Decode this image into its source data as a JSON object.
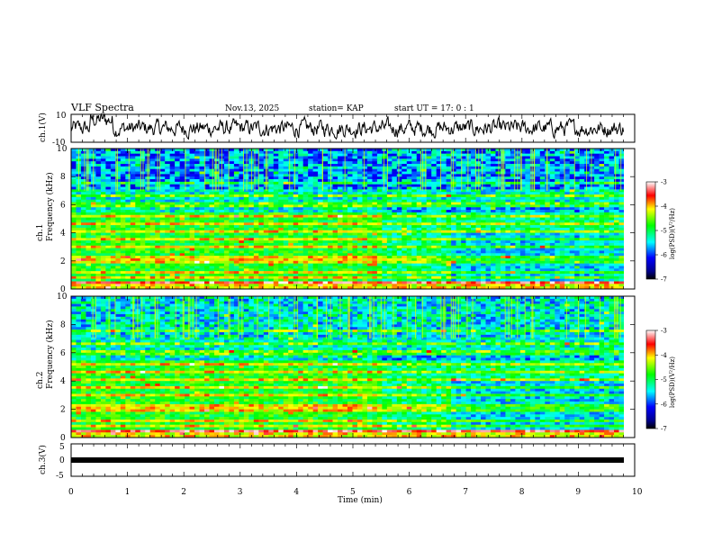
{
  "header": {
    "title": "VLF Spectra",
    "date": "Nov.13, 2025",
    "station": "station= KAP",
    "start": "start  UT =   17: 0  : 1"
  },
  "chart_data": [
    {
      "type": "line",
      "title": "",
      "ylabel": "ch.1(V)",
      "ylim": [
        -10,
        10
      ],
      "yticks": [
        "10",
        "-10"
      ],
      "description_series": "noisy waveform around -5 to 5 V over 0–9.8 min"
    },
    {
      "type": "heatmap",
      "ylabel_line1": "ch.1",
      "ylabel_line2": "Frequency (kHz)",
      "ylim": [
        0,
        10
      ],
      "yticks": [
        "0",
        "2",
        "4",
        "6",
        "8",
        "10"
      ],
      "xlim": [
        0,
        9.8
      ],
      "colorbar": {
        "label": "log(PSD)(V²/Hz)",
        "range": [
          -7,
          -3
        ],
        "ticks": [
          "-3",
          "-4",
          "-5",
          "-6",
          "-7"
        ]
      }
    },
    {
      "type": "heatmap",
      "ylabel_line1": "ch.2",
      "ylabel_line2": "Frequency (kHz)",
      "ylim": [
        0,
        10
      ],
      "yticks": [
        "0",
        "2",
        "4",
        "6",
        "8",
        "10"
      ],
      "xlim": [
        0,
        9.8
      ],
      "colorbar": {
        "label": "log(PSD)(V²/Hz)",
        "range": [
          -7,
          -3
        ],
        "ticks": [
          "-3",
          "-4",
          "-5",
          "-6",
          "-7"
        ]
      }
    },
    {
      "type": "line",
      "ylabel": "ch.3(V)",
      "ylim": [
        -5,
        5
      ],
      "yticks": [
        "5",
        "0",
        "-5"
      ],
      "value": 0
    }
  ],
  "xaxis": {
    "label": "Time  (min)",
    "ticks": [
      "0",
      "1",
      "2",
      "3",
      "4",
      "5",
      "6",
      "7",
      "8",
      "9",
      "10"
    ],
    "range": [
      0,
      10
    ]
  },
  "colors": {
    "accent": "#000000"
  }
}
